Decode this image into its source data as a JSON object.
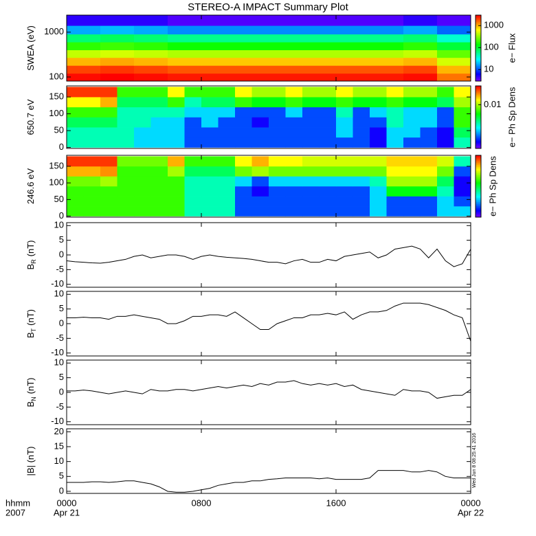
{
  "title": "STEREO-A IMPACT Summary Plot",
  "x_axis": {
    "xlim": [
      0,
      24
    ],
    "xticks": [
      {
        "value": 0,
        "label": "0000"
      },
      {
        "value": 8,
        "label": "0800"
      },
      {
        "value": 16,
        "label": "1600"
      },
      {
        "value": 24,
        "label": "0000"
      }
    ],
    "date_labels": [
      {
        "value": 0,
        "label": "Apr 21"
      },
      {
        "value": 24,
        "label": "Apr 22"
      }
    ],
    "unit_label": "hhmm",
    "year": "2007"
  },
  "timestamp": "Wed Jun  8 08:25:41 2016",
  "chart_data": [
    {
      "type": "heatmap",
      "ylabel": "SWEA (eV)",
      "ylog": true,
      "ylim": [
        81,
        2400
      ],
      "yticks": [
        100,
        1000
      ],
      "ybins": [
        81,
        120,
        180,
        270,
        400,
        600,
        900,
        1400,
        2400
      ],
      "xbins": [
        0,
        2,
        4,
        6,
        8,
        10,
        12,
        14,
        16,
        18,
        20,
        22,
        24
      ],
      "zlog": true,
      "zlim": [
        3,
        3000
      ],
      "zticks": [
        10,
        100,
        1000
      ],
      "zlabel": "e− Flux",
      "z": [
        [
          2800,
          3000,
          2800,
          2600,
          2600,
          2600,
          2600,
          2600,
          2600,
          2600,
          2800,
          1500
        ],
        [
          2000,
          2200,
          2000,
          1800,
          1800,
          1800,
          1800,
          1800,
          1800,
          1800,
          2000,
          1000
        ],
        [
          1000,
          1100,
          1000,
          900,
          900,
          900,
          900,
          900,
          900,
          900,
          1000,
          500
        ],
        [
          450,
          500,
          450,
          400,
          400,
          400,
          400,
          400,
          400,
          400,
          450,
          250
        ],
        [
          180,
          200,
          180,
          150,
          150,
          150,
          150,
          150,
          150,
          150,
          180,
          100
        ],
        [
          70,
          80,
          70,
          60,
          60,
          60,
          60,
          60,
          60,
          60,
          70,
          40
        ],
        [
          18,
          20,
          18,
          15,
          15,
          15,
          15,
          15,
          15,
          15,
          18,
          12
        ],
        [
          5,
          5,
          5,
          4,
          4,
          4,
          4,
          4,
          4,
          4,
          5,
          4
        ]
      ]
    },
    {
      "type": "heatmap",
      "ylabel": "650.7 eV",
      "ylim": [
        -3,
        183
      ],
      "yticks": [
        0,
        50,
        100,
        150
      ],
      "ybins": [
        0,
        30,
        60,
        90,
        120,
        150,
        180
      ],
      "xbins": [
        0,
        1,
        2,
        3,
        4,
        5,
        6,
        7,
        8,
        9,
        10,
        11,
        12,
        13,
        14,
        15,
        16,
        17,
        18,
        19,
        20,
        21,
        22,
        23,
        24
      ],
      "zlog": true,
      "zlim": [
        0.002,
        0.02
      ],
      "zticks": [
        0.01
      ],
      "zlabel": "e− Ph Sp Dens",
      "z": [
        [
          0.005,
          0.005,
          0.005,
          0.005,
          0.004,
          0.004,
          0.004,
          0.003,
          0.003,
          0.003,
          0.003,
          0.003,
          0.003,
          0.003,
          0.003,
          0.003,
          0.003,
          0.003,
          0.0025,
          0.004,
          0.003,
          0.003,
          0.0025,
          0.005
        ],
        [
          0.005,
          0.005,
          0.005,
          0.005,
          0.004,
          0.004,
          0.004,
          0.003,
          0.003,
          0.003,
          0.003,
          0.003,
          0.003,
          0.003,
          0.003,
          0.003,
          0.004,
          0.003,
          0.0025,
          0.004,
          0.004,
          0.003,
          0.0025,
          0.006
        ],
        [
          0.006,
          0.006,
          0.006,
          0.005,
          0.005,
          0.004,
          0.004,
          0.003,
          0.004,
          0.003,
          0.003,
          0.0025,
          0.003,
          0.003,
          0.003,
          0.003,
          0.004,
          0.003,
          0.003,
          0.005,
          0.004,
          0.004,
          0.003,
          0.008
        ],
        [
          0.008,
          0.008,
          0.008,
          0.005,
          0.005,
          0.005,
          0.005,
          0.004,
          0.004,
          0.004,
          0.003,
          0.003,
          0.003,
          0.004,
          0.003,
          0.003,
          0.005,
          0.003,
          0.004,
          0.005,
          0.004,
          0.004,
          0.003,
          0.008
        ],
        [
          0.012,
          0.012,
          0.014,
          0.006,
          0.006,
          0.006,
          0.008,
          0.005,
          0.006,
          0.006,
          0.008,
          0.007,
          0.007,
          0.008,
          0.007,
          0.007,
          0.008,
          0.007,
          0.007,
          0.008,
          0.007,
          0.007,
          0.006,
          0.01
        ],
        [
          0.018,
          0.018,
          0.018,
          0.008,
          0.008,
          0.008,
          0.012,
          0.008,
          0.008,
          0.008,
          0.012,
          0.01,
          0.01,
          0.012,
          0.01,
          0.01,
          0.012,
          0.01,
          0.01,
          0.012,
          0.01,
          0.01,
          0.008,
          0.012
        ]
      ]
    },
    {
      "type": "heatmap",
      "ylabel": "246.6 eV",
      "ylim": [
        -3,
        183
      ],
      "yticks": [
        0,
        50,
        100,
        150
      ],
      "ybins": [
        0,
        30,
        60,
        90,
        120,
        150,
        180
      ],
      "xbins": [
        0,
        1,
        2,
        3,
        4,
        5,
        6,
        7,
        8,
        9,
        10,
        11,
        12,
        13,
        14,
        15,
        16,
        17,
        18,
        19,
        20,
        21,
        22,
        23,
        24
      ],
      "zlog": true,
      "zlim": [
        0.002,
        0.02
      ],
      "zlabel": "e− Ph Sp Dens",
      "z": [
        [
          0.008,
          0.008,
          0.008,
          0.008,
          0.008,
          0.008,
          0.008,
          0.005,
          0.005,
          0.005,
          0.003,
          0.003,
          0.003,
          0.003,
          0.003,
          0.003,
          0.003,
          0.003,
          0.004,
          0.003,
          0.003,
          0.003,
          0.004,
          0.004
        ],
        [
          0.008,
          0.008,
          0.008,
          0.008,
          0.008,
          0.008,
          0.008,
          0.005,
          0.005,
          0.005,
          0.003,
          0.003,
          0.003,
          0.003,
          0.003,
          0.003,
          0.003,
          0.003,
          0.004,
          0.003,
          0.003,
          0.003,
          0.004,
          0.003
        ],
        [
          0.008,
          0.008,
          0.008,
          0.008,
          0.008,
          0.008,
          0.008,
          0.005,
          0.005,
          0.005,
          0.003,
          0.0025,
          0.003,
          0.003,
          0.003,
          0.003,
          0.003,
          0.003,
          0.004,
          0.007,
          0.007,
          0.007,
          0.005,
          0.0025
        ],
        [
          0.009,
          0.009,
          0.01,
          0.008,
          0.008,
          0.008,
          0.008,
          0.005,
          0.005,
          0.005,
          0.004,
          0.003,
          0.004,
          0.004,
          0.004,
          0.004,
          0.004,
          0.004,
          0.005,
          0.01,
          0.01,
          0.01,
          0.006,
          0.0025
        ],
        [
          0.014,
          0.014,
          0.015,
          0.008,
          0.008,
          0.008,
          0.01,
          0.006,
          0.006,
          0.006,
          0.009,
          0.01,
          0.009,
          0.009,
          0.009,
          0.009,
          0.009,
          0.009,
          0.009,
          0.012,
          0.012,
          0.012,
          0.009,
          0.003
        ],
        [
          0.018,
          0.018,
          0.018,
          0.009,
          0.009,
          0.009,
          0.014,
          0.008,
          0.008,
          0.008,
          0.012,
          0.014,
          0.012,
          0.012,
          0.011,
          0.011,
          0.011,
          0.011,
          0.011,
          0.013,
          0.013,
          0.013,
          0.011,
          0.005
        ]
      ]
    },
    {
      "type": "line",
      "ylabel": "B",
      "ylabel_sub": "R",
      "ylabel_unit": "(nT)",
      "ylim": [
        -11,
        11
      ],
      "yticks": [
        -10,
        -5,
        0,
        5,
        10
      ],
      "color": "#000000",
      "x": [
        0,
        0.5,
        1,
        1.5,
        2,
        2.5,
        3,
        3.5,
        4,
        4.5,
        5,
        5.5,
        6,
        6.5,
        7,
        7.5,
        8,
        8.5,
        9,
        9.5,
        10,
        10.5,
        11,
        11.5,
        12,
        12.5,
        13,
        13.5,
        14,
        14.5,
        15,
        15.5,
        16,
        16.5,
        17,
        17.5,
        18,
        18.5,
        19,
        19.5,
        20,
        20.5,
        21,
        21.5,
        22,
        22.5,
        23,
        23.5,
        24
      ],
      "values": [
        -2,
        -2.3,
        -2.5,
        -2.7,
        -2.8,
        -2.5,
        -2,
        -1.5,
        -0.5,
        0,
        -1,
        -0.5,
        0,
        0,
        -0.5,
        -1.5,
        -0.5,
        0,
        -0.5,
        -0.8,
        -1,
        -1.2,
        -1.5,
        -2,
        -2.5,
        -2.5,
        -3,
        -2,
        -1.5,
        -2.5,
        -2.5,
        -1.5,
        -2,
        -0.5,
        0,
        0.5,
        1,
        -1,
        0,
        2,
        2.5,
        3,
        2,
        -1,
        2,
        -2,
        -4,
        -3,
        2
      ]
    },
    {
      "type": "line",
      "ylabel": "B",
      "ylabel_sub": "T",
      "ylabel_unit": "(nT)",
      "ylim": [
        -11,
        11
      ],
      "yticks": [
        -10,
        -5,
        0,
        5,
        10
      ],
      "color": "#000000",
      "x": [
        0,
        0.5,
        1,
        1.5,
        2,
        2.5,
        3,
        3.5,
        4,
        4.5,
        5,
        5.5,
        6,
        6.5,
        7,
        7.5,
        8,
        8.5,
        9,
        9.5,
        10,
        10.5,
        11,
        11.5,
        12,
        12.5,
        13,
        13.5,
        14,
        14.5,
        15,
        15.5,
        16,
        16.5,
        17,
        17.5,
        18,
        18.5,
        19,
        19.5,
        20,
        20.5,
        21,
        21.5,
        22,
        22.5,
        23,
        23.5,
        24
      ],
      "values": [
        2,
        2,
        2.2,
        2,
        2,
        1.5,
        2.5,
        2.5,
        3,
        2.5,
        2,
        1.5,
        0,
        0,
        1,
        2.5,
        2.5,
        3,
        3,
        2.5,
        4,
        2,
        0,
        -2,
        -2,
        0,
        1,
        2,
        2,
        3,
        3,
        3.5,
        3,
        4,
        1.5,
        3,
        4,
        4,
        4.5,
        6,
        7,
        7,
        7,
        6.5,
        5.5,
        4.5,
        3,
        2,
        -6
      ]
    },
    {
      "type": "line",
      "ylabel": "B",
      "ylabel_sub": "N",
      "ylabel_unit": "(nT)",
      "ylim": [
        -11,
        11
      ],
      "yticks": [
        -10,
        -5,
        0,
        5,
        10
      ],
      "color": "#000000",
      "x": [
        0,
        0.5,
        1,
        1.5,
        2,
        2.5,
        3,
        3.5,
        4,
        4.5,
        5,
        5.5,
        6,
        6.5,
        7,
        7.5,
        8,
        8.5,
        9,
        9.5,
        10,
        10.5,
        11,
        11.5,
        12,
        12.5,
        13,
        13.5,
        14,
        14.5,
        15,
        15.5,
        16,
        16.5,
        17,
        17.5,
        18,
        18.5,
        19,
        19.5,
        20,
        20.5,
        21,
        21.5,
        22,
        22.5,
        23,
        23.5,
        24
      ],
      "values": [
        0.5,
        0.5,
        0.8,
        0.5,
        0,
        -0.5,
        0,
        0.5,
        0,
        -0.5,
        1,
        0.5,
        0.5,
        1,
        1,
        0.5,
        1,
        1.5,
        2,
        1.5,
        2,
        2.5,
        2,
        3,
        2.5,
        3.5,
        3.5,
        4,
        3,
        2.5,
        3,
        2.5,
        3,
        2,
        2.5,
        1,
        0.5,
        0,
        -0.5,
        -1,
        1,
        0.5,
        0.5,
        0,
        -2,
        -1.5,
        -1,
        -1,
        1
      ]
    },
    {
      "type": "line",
      "ylabel": "|B| (nT)",
      "ylim": [
        -0.7,
        21
      ],
      "yticks": [
        0,
        5,
        10,
        15,
        20
      ],
      "color": "#000000",
      "x": [
        0,
        0.5,
        1,
        1.5,
        2,
        2.5,
        3,
        3.5,
        4,
        4.5,
        5,
        5.5,
        6,
        6.5,
        7,
        7.5,
        8,
        8.5,
        9,
        9.5,
        10,
        10.5,
        11,
        11.5,
        12,
        12.5,
        13,
        13.5,
        14,
        14.5,
        15,
        15.5,
        16,
        16.5,
        17,
        17.5,
        18,
        18.5,
        19,
        19.5,
        20,
        20.5,
        21,
        21.5,
        22,
        22.5,
        23,
        23.5,
        24
      ],
      "values": [
        3,
        3,
        3,
        3.2,
        3.2,
        3,
        3.2,
        3.5,
        3.5,
        3,
        2.5,
        1.5,
        0,
        -0.3,
        -0.3,
        0,
        0.5,
        1,
        2,
        2.5,
        3,
        3,
        3.5,
        3.5,
        4,
        4.2,
        4.5,
        4.5,
        4.5,
        4.5,
        4.2,
        4.5,
        4,
        4,
        4,
        4,
        4.5,
        7,
        7,
        7,
        7,
        6.5,
        6.5,
        7,
        6.5,
        5,
        4.5,
        4.5,
        4.5
      ]
    }
  ]
}
